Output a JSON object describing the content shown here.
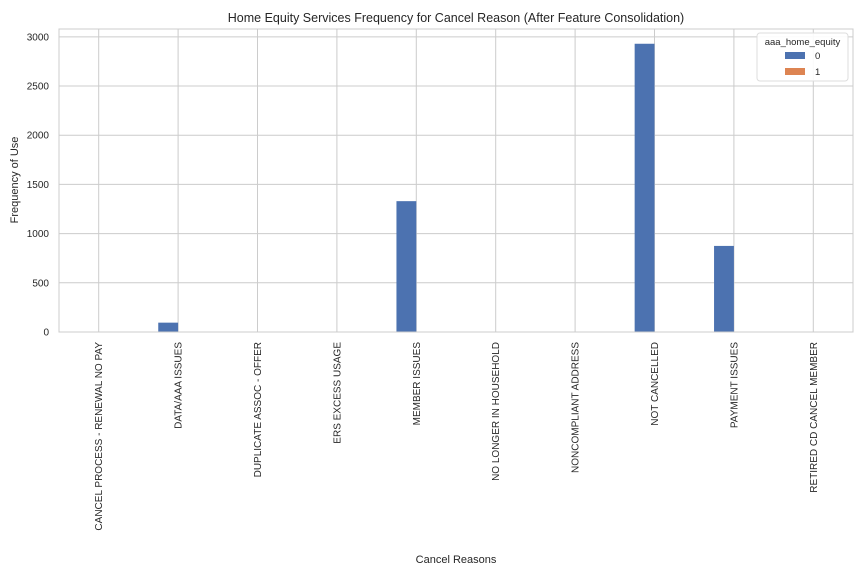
{
  "chart_data": {
    "type": "bar",
    "title": "Home Equity Services Frequency for Cancel Reason (After Feature Consolidation)",
    "xlabel": "Cancel Reasons",
    "ylabel": "Frequency of Use",
    "categories": [
      "CANCEL PROCESS - RENEWAL NO PAY",
      "DATA/AAA ISSUES",
      "DUPLICATE ASSOC - OFFER",
      "ERS EXCESS USAGE",
      "MEMBER ISSUES",
      "NO LONGER IN HOUSEHOLD",
      "NONCOMPLIANT ADDRESS",
      "NOT CANCELLED",
      "PAYMENT ISSUES",
      "RETIRED CD CANCEL MEMBER"
    ],
    "series": [
      {
        "name": "0",
        "color": "#4c72b0",
        "values": [
          0,
          95,
          0,
          0,
          1330,
          0,
          0,
          2930,
          875,
          0
        ]
      },
      {
        "name": "1",
        "color": "#dd8452",
        "values": [
          0,
          0,
          0,
          0,
          0,
          0,
          0,
          0,
          0,
          0
        ]
      }
    ],
    "ylim": [
      0,
      3080
    ],
    "yticks": [
      0,
      500,
      1000,
      1500,
      2000,
      2500,
      3000
    ],
    "grid": true,
    "legend": {
      "title": "aaa_home_equity",
      "position": "top-right"
    }
  }
}
